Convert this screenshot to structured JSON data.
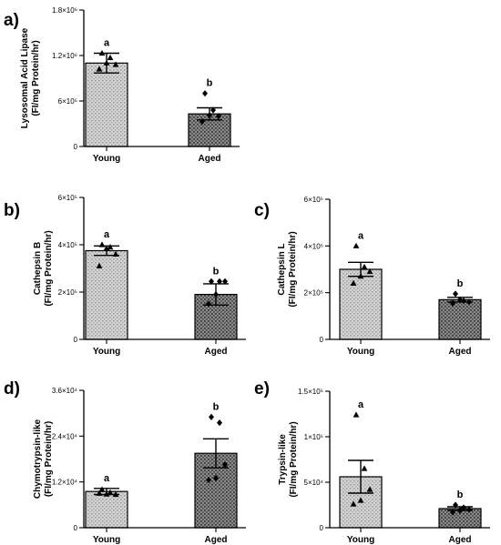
{
  "colors": {
    "young_fill": "#c8c8c8",
    "aged_fill": "#6e6e6e"
  },
  "chart_data": [
    {
      "type": "bar",
      "panel": "a)",
      "ylabel_line1": "Lysosomal Acid Lipase",
      "ylabel_line2": "(FI/mg Protein/hr)",
      "categories": [
        "Young",
        "Aged"
      ],
      "values": [
        1100000,
        430000
      ],
      "errors": [
        130000,
        80000
      ],
      "significance": [
        "a",
        "b"
      ],
      "ylim": [
        0,
        1800000
      ],
      "yticks": [
        0,
        600000,
        1200000,
        1800000
      ],
      "ytick_labels": [
        "0",
        "6×10⁵",
        "1.2×10⁶",
        "1.8×10⁶"
      ],
      "points": [
        [
          {
            "v": 1230000,
            "s": "tri"
          },
          {
            "v": 1170000,
            "s": "tri"
          },
          {
            "v": 1080000,
            "s": "tri"
          },
          {
            "v": 1020000,
            "s": "tri"
          },
          {
            "v": 1100000,
            "s": "tri"
          }
        ],
        [
          {
            "v": 700000,
            "s": "dia"
          },
          {
            "v": 480000,
            "s": "dia"
          },
          {
            "v": 400000,
            "s": "dia"
          },
          {
            "v": 330000,
            "s": "dia"
          },
          {
            "v": 410000,
            "s": "dia"
          }
        ]
      ]
    },
    {
      "type": "bar",
      "panel": "b)",
      "ylabel_line1": "Cathepsin B",
      "ylabel_line2": "(FI/mg Protein/hr)",
      "categories": [
        "Young",
        "Aged"
      ],
      "values": [
        375000,
        190000
      ],
      "errors": [
        20000,
        45000
      ],
      "significance": [
        "a",
        "b"
      ],
      "ylim": [
        0,
        600000
      ],
      "yticks": [
        0,
        200000,
        400000,
        600000
      ],
      "ytick_labels": [
        "0",
        "2×10⁵",
        "4×10⁵",
        "6×10⁵"
      ],
      "points": [
        [
          {
            "v": 400000,
            "s": "tri"
          },
          {
            "v": 390000,
            "s": "tri"
          },
          {
            "v": 360000,
            "s": "tri"
          },
          {
            "v": 310000,
            "s": "tri"
          },
          {
            "v": 385000,
            "s": "tri"
          }
        ],
        [
          {
            "v": 245000,
            "s": "dia"
          },
          {
            "v": 245000,
            "s": "dia"
          },
          {
            "v": 245000,
            "s": "dia"
          },
          {
            "v": 150000,
            "s": "dia"
          },
          {
            "v": 190000,
            "s": "dia"
          }
        ]
      ]
    },
    {
      "type": "bar",
      "panel": "c)",
      "ylabel_line1": "Cathepsin L",
      "ylabel_line2": "(FI/mg Protein/hr)",
      "categories": [
        "Young",
        "Aged"
      ],
      "values": [
        300000,
        170000
      ],
      "errors": [
        30000,
        10000
      ],
      "significance": [
        "a",
        "b"
      ],
      "ylim": [
        0,
        600000
      ],
      "yticks": [
        0,
        200000,
        400000,
        600000
      ],
      "ytick_labels": [
        "0",
        "2×10⁵",
        "4×10⁵",
        "6×10⁵"
      ],
      "points": [
        [
          {
            "v": 400000,
            "s": "tri"
          },
          {
            "v": 310000,
            "s": "tri"
          },
          {
            "v": 290000,
            "s": "tri"
          },
          {
            "v": 240000,
            "s": "tri"
          },
          {
            "v": 270000,
            "s": "tri"
          }
        ],
        [
          {
            "v": 195000,
            "s": "dia"
          },
          {
            "v": 165000,
            "s": "dia"
          },
          {
            "v": 160000,
            "s": "dia"
          },
          {
            "v": 155000,
            "s": "dia"
          },
          {
            "v": 170000,
            "s": "dia"
          }
        ]
      ]
    },
    {
      "type": "bar",
      "panel": "d)",
      "ylabel_line1": "Chymotrypsin-like",
      "ylabel_line2": "(FI/mg Protein/hr)",
      "categories": [
        "Young",
        "Aged"
      ],
      "values": [
        9500,
        19500
      ],
      "errors": [
        800,
        3800
      ],
      "significance": [
        "a",
        "b"
      ],
      "ylim": [
        0,
        36000
      ],
      "yticks": [
        0,
        12000,
        24000,
        36000
      ],
      "ytick_labels": [
        "0",
        "1.2×10⁴",
        "2.4×10⁴",
        "3.6×10⁴"
      ],
      "points": [
        [
          {
            "v": 10000,
            "s": "tri"
          },
          {
            "v": 9200,
            "s": "tri"
          },
          {
            "v": 8700,
            "s": "tri"
          },
          {
            "v": 9000,
            "s": "tri"
          },
          {
            "v": 8800,
            "s": "tri"
          }
        ],
        [
          {
            "v": 29000,
            "s": "dia"
          },
          {
            "v": 27500,
            "s": "dia"
          },
          {
            "v": 16500,
            "s": "dia"
          },
          {
            "v": 12500,
            "s": "dia"
          },
          {
            "v": 13000,
            "s": "dia"
          }
        ]
      ]
    },
    {
      "type": "bar",
      "panel": "e)",
      "ylabel_line1": "Trypsin-like",
      "ylabel_line2": "(FI/mg Protein/hr)",
      "categories": [
        "Young",
        "Aged"
      ],
      "values": [
        56000,
        21000
      ],
      "errors": [
        18000,
        2000
      ],
      "significance": [
        "a",
        "b"
      ],
      "ylim": [
        0,
        150000
      ],
      "yticks": [
        0,
        50000,
        100000,
        150000
      ],
      "ytick_labels": [
        "0",
        "5×10⁴",
        "1×10⁵",
        "1.5×10⁵"
      ],
      "points": [
        [
          {
            "v": 124000,
            "s": "tri"
          },
          {
            "v": 65000,
            "s": "tri"
          },
          {
            "v": 42000,
            "s": "tri"
          },
          {
            "v": 26000,
            "s": "tri"
          },
          {
            "v": 30000,
            "s": "tri"
          }
        ],
        [
          {
            "v": 25000,
            "s": "dia"
          },
          {
            "v": 22000,
            "s": "dia"
          },
          {
            "v": 20000,
            "s": "dia"
          },
          {
            "v": 17000,
            "s": "dia"
          },
          {
            "v": 19000,
            "s": "dia"
          }
        ]
      ]
    }
  ]
}
